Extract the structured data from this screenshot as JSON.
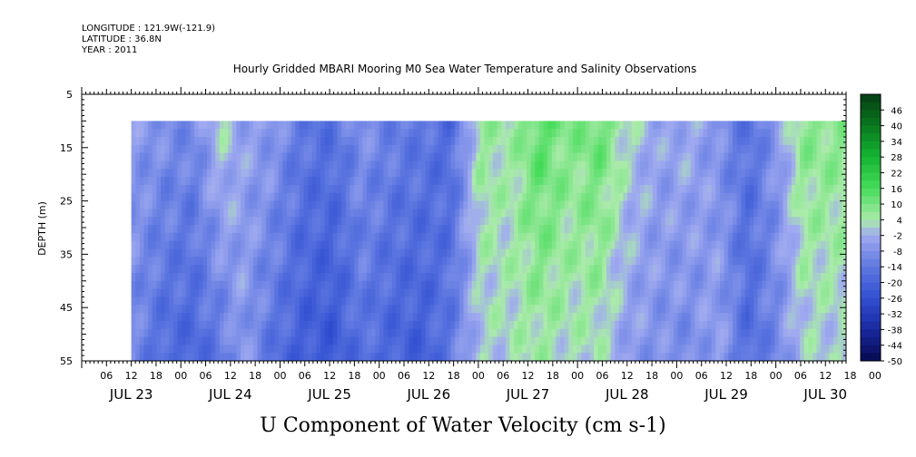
{
  "header": {
    "longitude": "LONGITUDE : 121.9W(-121.9)",
    "latitude": "LATITUDE : 36.8N",
    "year": "YEAR : 2011"
  },
  "chart_data": {
    "type": "heatmap",
    "title": "Hourly Gridded MBARI Mooring M0 Sea Water Temperature and Salinity Observations",
    "bottom_label": "U Component of Water Velocity (cm s-1)",
    "ylabel": "DEPTH (m)",
    "ylim": [
      5,
      55
    ],
    "y_inverted": true,
    "y_ticks": [
      "5",
      "15",
      "25",
      "35",
      "45",
      "55"
    ],
    "x_hour_labels": [
      "06",
      "12",
      "18",
      "00",
      "06",
      "12",
      "18",
      "00",
      "06",
      "12",
      "18",
      "00",
      "06",
      "12",
      "18",
      "00",
      "06",
      "12",
      "18",
      "00",
      "06",
      "12",
      "18",
      "00",
      "06",
      "12",
      "18",
      "00",
      "06",
      "12",
      "18",
      "00"
    ],
    "x_day_labels": [
      "JUL 23",
      "JUL 24",
      "JUL 25",
      "JUL 26",
      "JUL 27",
      "JUL 28",
      "JUL 29",
      "JUL 30"
    ],
    "x_range_hours_from_jul23_00": [
      0,
      185
    ],
    "data_start_hour": 12,
    "data_depth_range": [
      10,
      55
    ],
    "colorbar": {
      "levels": [
        "46",
        "40",
        "34",
        "28",
        "22",
        "16",
        "10",
        "4",
        "-2",
        "-8",
        "-14",
        "-20",
        "-26",
        "-32",
        "-38",
        "-44",
        "-50"
      ],
      "min": -50,
      "max": 52
    },
    "grid": false,
    "field_profile": {
      "note_time_days_from_jul23_12": [
        0,
        0.3,
        0.6,
        0.9,
        1.1,
        1.4,
        1.7,
        2.0,
        2.3,
        2.6,
        2.9,
        3.2,
        3.5,
        3.8,
        4.1,
        4.4,
        4.7,
        5.0,
        5.3,
        5.6,
        5.9,
        6.2,
        6.5,
        6.75
      ],
      "surface_u": [
        -6,
        -8,
        -10,
        2,
        -4,
        -6,
        -14,
        -16,
        -8,
        -12,
        -14,
        -18,
        6,
        4,
        14,
        8,
        12,
        2,
        -4,
        -2,
        -8,
        -16,
        -6,
        8
      ],
      "bottom_u": [
        -10,
        -18,
        -20,
        -14,
        -6,
        -16,
        -22,
        -24,
        -16,
        -20,
        -22,
        -14,
        0,
        2,
        4,
        2,
        2,
        -6,
        -8,
        -10,
        -4,
        -18,
        -10,
        0
      ]
    }
  }
}
